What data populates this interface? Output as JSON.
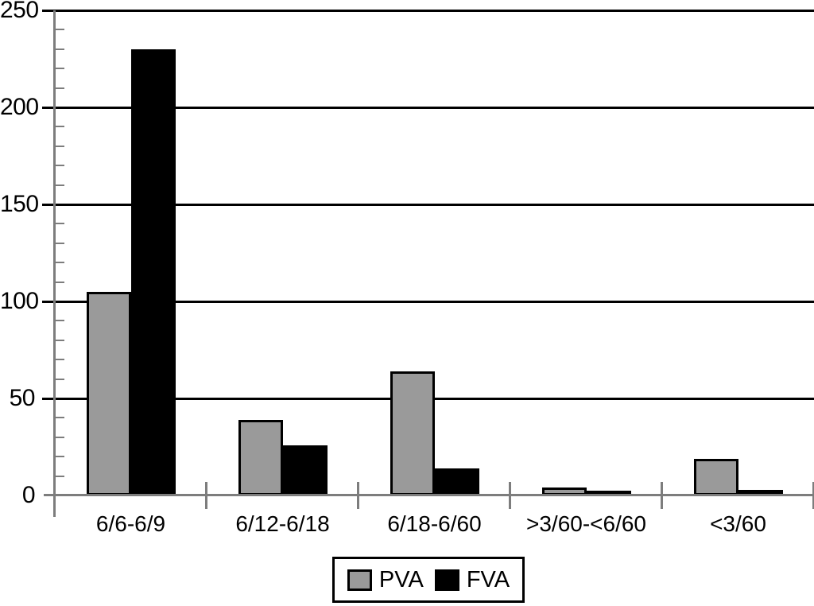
{
  "chart_data": {
    "type": "bar",
    "title": "",
    "xlabel": "",
    "ylabel": "",
    "categories": [
      "6/6-6/9",
      "6/12-6/18",
      "6/18-6/60",
      ">3/60-<6/60",
      "<3/60"
    ],
    "series": [
      {
        "name": "PVA",
        "color": "#9a9a9a",
        "values": [
          105,
          39,
          64,
          4,
          19
        ]
      },
      {
        "name": "FVA",
        "color": "#000000",
        "values": [
          230,
          26,
          14,
          2,
          3
        ]
      }
    ],
    "ylim": [
      0,
      250
    ],
    "yticks": [
      0,
      50,
      100,
      150,
      200,
      250
    ],
    "ytick_interval": 50,
    "yminor_interval": 10,
    "grid": true,
    "legend_position": "bottom-center",
    "colors": {
      "gridline": "#000000",
      "axis": "#7d7d7d",
      "background": "#ffffff",
      "text": "#000000"
    }
  }
}
